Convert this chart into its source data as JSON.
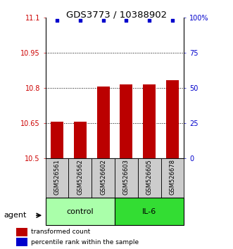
{
  "title": "GDS3773 / 10388902",
  "categories": [
    "GSM526561",
    "GSM526562",
    "GSM526602",
    "GSM526603",
    "GSM526605",
    "GSM526678"
  ],
  "bar_values": [
    10.655,
    10.655,
    10.805,
    10.815,
    10.815,
    10.832
  ],
  "bar_color": "#bb0000",
  "percentile_values": [
    98,
    98,
    98,
    98,
    98,
    98
  ],
  "percentile_color": "#0000cc",
  "ylim_left": [
    10.5,
    11.1
  ],
  "ylim_right": [
    0,
    100
  ],
  "yticks_left": [
    10.5,
    10.65,
    10.8,
    10.95,
    11.1
  ],
  "yticks_left_labels": [
    "10.5",
    "10.65",
    "10.8",
    "10.95",
    "11.1"
  ],
  "yticks_right": [
    0,
    25,
    50,
    75,
    100
  ],
  "yticks_right_labels": [
    "0",
    "25",
    "50",
    "75",
    "100%"
  ],
  "hlines": [
    10.65,
    10.8,
    10.95
  ],
  "group_labels": [
    "control",
    "IL-6"
  ],
  "group_colors": [
    "#aaffaa",
    "#33dd33"
  ],
  "group_ranges": [
    [
      0,
      3
    ],
    [
      3,
      6
    ]
  ],
  "agent_label": "agent",
  "legend_red_label": "transformed count",
  "legend_blue_label": "percentile rank within the sample",
  "bar_width": 0.55,
  "left_ycolor": "#cc0000",
  "right_ycolor": "#0000cc",
  "sample_bg_color": "#cccccc",
  "figsize": [
    3.31,
    3.54
  ],
  "dpi": 100
}
